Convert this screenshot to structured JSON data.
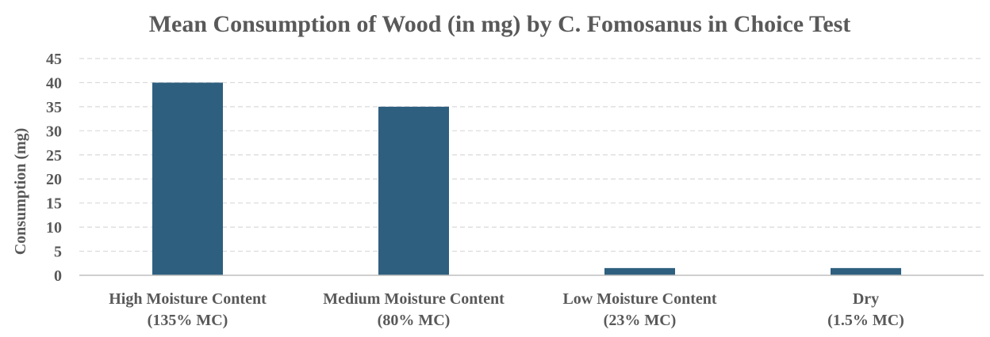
{
  "chart_data": {
    "type": "bar",
    "title": "Mean Consumption of Wood (in mg) by C. Fomosanus in Choice Test",
    "xlabel": "",
    "ylabel": "Consumption (mg)",
    "ylim": [
      0,
      45
    ],
    "yticks": [
      0,
      5,
      10,
      15,
      20,
      25,
      30,
      35,
      40,
      45
    ],
    "grid": true,
    "legend": "none",
    "categories": [
      [
        "High Moisture Content",
        "(135% MC)"
      ],
      [
        "Medium Moisture Content",
        "(80% MC)"
      ],
      [
        "Low Moisture Content",
        "(23% MC)"
      ],
      [
        "Dry",
        "(1.5% MC)"
      ]
    ],
    "values": [
      40,
      35,
      1.5,
      1.5
    ],
    "bar_color": "#2e5f7f"
  }
}
